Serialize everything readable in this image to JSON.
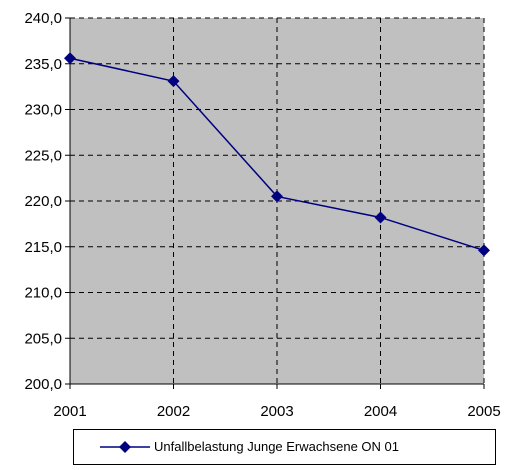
{
  "chart_data": {
    "type": "line",
    "title": "",
    "xlabel": "",
    "ylabel": "",
    "categories": [
      "2001",
      "2002",
      "2003",
      "2004",
      "2005"
    ],
    "series": [
      {
        "name": "Unfallbelastung Junge Erwachsene ON 01",
        "values": [
          235.6,
          233.1,
          220.5,
          218.2,
          214.6
        ],
        "color": "#000080",
        "marker": "diamond-icon"
      }
    ],
    "ylim": [
      200,
      240
    ],
    "yticks": [
      "200,0",
      "205,0",
      "210,0",
      "215,0",
      "220,0",
      "225,0",
      "230,0",
      "235,0",
      "240,0"
    ],
    "plot_background": "#c0c0c0",
    "grid": "dashed",
    "legend_position": "bottom"
  }
}
